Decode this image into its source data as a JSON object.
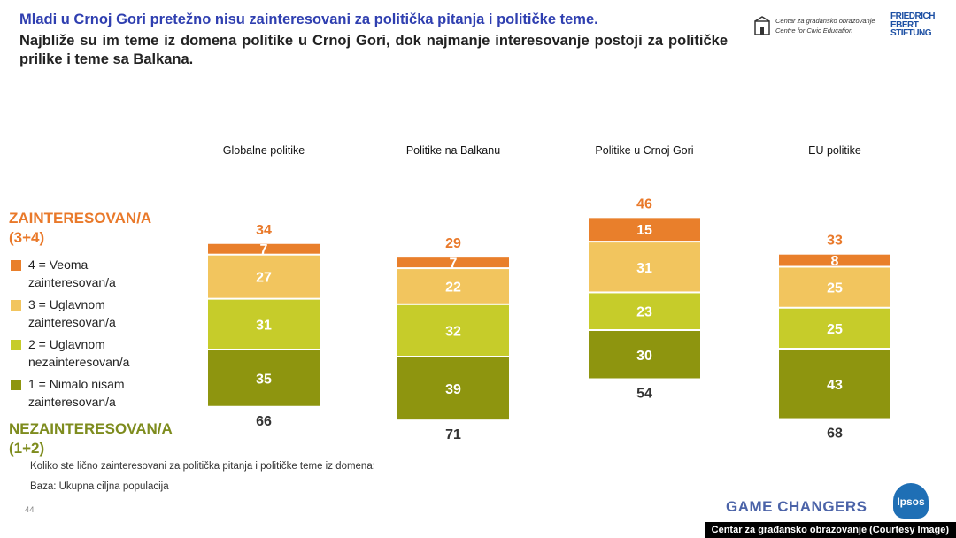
{
  "header": {
    "title": "Mladi u Crnoj Gori pretežno nisu zainteresovani za politička pitanja i političke teme.",
    "subtitle": "Najbliže su im teme iz domena politike u Crnoj Gori, dok najmanje interesovanje postoji za političke prilike i teme sa Balkana."
  },
  "logos": {
    "cgo_line1": "Centar za građansko obrazovanje",
    "cgo_line2": "Centre for Civic Education",
    "fes_line1": "FRIEDRICH",
    "fes_line2": "EBERT",
    "fes_line3": "STIFTUNG",
    "ipsos": "Ipsos"
  },
  "legend": {
    "interested_title": "ZAINTERESOVAN/A",
    "interested_sub": "(3+4)",
    "not_interested_title": "NEZAINTERESOVAN/A",
    "not_interested_sub": "(1+2)",
    "items": [
      {
        "line1": "4 = Veoma",
        "line2": "zainteresovan/a",
        "color": "#e97f2b"
      },
      {
        "line1": "3 = Uglavnom",
        "line2": "zainteresovan/a",
        "color": "#f2c55e"
      },
      {
        "line1": "2 = Uglavnom",
        "line2": "nezainteresovan/a",
        "color": "#c6cc2a"
      },
      {
        "line1": "1 = Nimalo nisam",
        "line2": "zainteresovan/a",
        "color": "#8e950f"
      }
    ]
  },
  "chart_data": {
    "type": "bar",
    "stacked": true,
    "categories": [
      "Globalne politike",
      "Politike na Balkanu",
      "Politike u Crnoj Gori",
      "EU politike"
    ],
    "series": [
      {
        "name": "1 = Nimalo nisam zainteresovan/a",
        "values": [
          35,
          39,
          30,
          43
        ],
        "color": "#8e950f"
      },
      {
        "name": "2 = Uglavnom nezainteresovan/a",
        "values": [
          31,
          32,
          23,
          25
        ],
        "color": "#c6cc2a"
      },
      {
        "name": "3 = Uglavnom zainteresovan/a",
        "values": [
          27,
          22,
          31,
          25
        ],
        "color": "#f2c55e"
      },
      {
        "name": "4 = Veoma zainteresovan/a",
        "values": [
          7,
          7,
          15,
          8
        ],
        "color": "#e97f2b"
      }
    ],
    "totals_interested": [
      34,
      29,
      46,
      33
    ],
    "totals_not_interested": [
      66,
      71,
      54,
      68
    ],
    "interested_color": "#e9792a",
    "not_interested_color": "#333333",
    "label_color": "#ffffff"
  },
  "footer": {
    "question": "Koliko ste lično zainteresovani za politička pitanja i političke teme iz domena:",
    "base": "Baza: Ukupna ciljna populacija",
    "page": "44",
    "brand": "GAME CHANGERS",
    "credit": "Centar za građansko obrazovanje (Courtesy Image)"
  }
}
